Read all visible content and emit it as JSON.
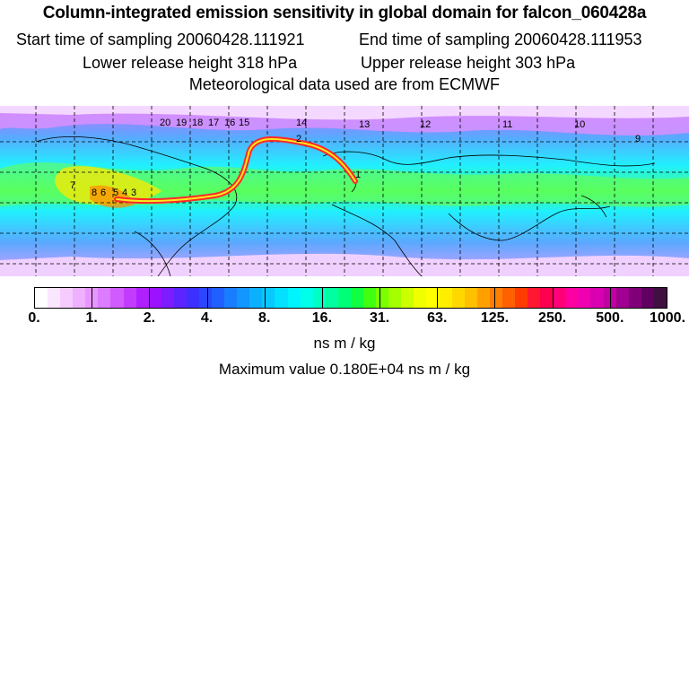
{
  "header": {
    "title": "Column-integrated emission sensitivity in global domain for falcon_060428a",
    "start_label": "Start time of sampling 20060428.111921",
    "end_label": "End time of sampling 20060428.111953",
    "lower_label": "Lower release height  318 hPa",
    "upper_label": "Upper release height  303 hPa",
    "met_label": "Meteorological data used are from ECMWF"
  },
  "map": {
    "track_day_labels": [
      "20",
      "19",
      "18",
      "17",
      "16",
      "15",
      "14",
      "13",
      "12",
      "11",
      "10",
      "9",
      "8",
      "7",
      "6",
      "5",
      "4",
      "3",
      "2",
      "1"
    ],
    "grid": "dashed",
    "palette": {
      "ocean": "#b8e6ff",
      "track_outer": "#ff2a2a",
      "track_inner": "#ffe81a"
    }
  },
  "colorbar": {
    "labels": [
      "0.",
      "1.",
      "2.",
      "4.",
      "8.",
      "16.",
      "31.",
      "63.",
      "125.",
      "250.",
      "500.",
      "1000."
    ],
    "unit": "ns m / kg",
    "colors": [
      "#ffffff",
      "#fbe6ff",
      "#f6ccff",
      "#efb0ff",
      "#e896ff",
      "#dc7cff",
      "#d05cff",
      "#c23cff",
      "#b020ff",
      "#9a12ff",
      "#7c1cff",
      "#5c24ff",
      "#3c30ff",
      "#2a46ff",
      "#2060ff",
      "#1a7cff",
      "#1296ff",
      "#0cb0ff",
      "#08c8ff",
      "#04e0ff",
      "#00f4ff",
      "#00ffe8",
      "#00ffc4",
      "#00ffa0",
      "#00ff78",
      "#10ff40",
      "#40ff10",
      "#78ff00",
      "#a4ff00",
      "#ccff00",
      "#f0ff00",
      "#ffff00",
      "#ffee00",
      "#ffd800",
      "#ffc000",
      "#ffa000",
      "#ff8000",
      "#ff6000",
      "#ff3c00",
      "#ff1830",
      "#ff0050",
      "#ff0078",
      "#ff00a0",
      "#f000b0",
      "#d800b0",
      "#c000a0",
      "#a00090",
      "#800078",
      "#600060",
      "#401040"
    ]
  },
  "footer": {
    "max_label": "Maximum value  0.180E+04 ns m / kg"
  }
}
